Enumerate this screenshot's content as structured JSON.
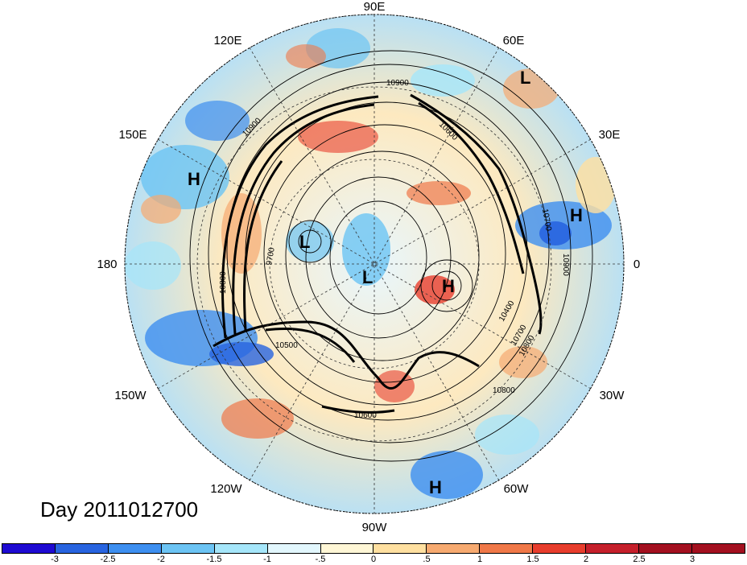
{
  "title": "Day 2011012700",
  "longitude_labels": {
    "top": "90E",
    "upper_left": "120E",
    "upper_right": "60E",
    "left_upper": "150E",
    "right_upper": "30E",
    "left": "180",
    "right": "0",
    "left_lower": "150W",
    "right_lower": "30W",
    "lower_left": "120W",
    "lower_right": "60W",
    "bottom": "90W"
  },
  "pressure_centers": [
    {
      "label": "L",
      "name": "low-center-north-atlantic-europe"
    },
    {
      "label": "H",
      "name": "high-center-west-pacific"
    },
    {
      "label": "H",
      "name": "high-center-europe"
    },
    {
      "label": "L",
      "name": "low-center-siberia"
    },
    {
      "label": "L",
      "name": "low-center-pole"
    },
    {
      "label": "H",
      "name": "high-center-greenland"
    },
    {
      "label": "H",
      "name": "high-center-atlantic-south"
    }
  ],
  "contour_labels": [
    "10900",
    "10800",
    "10700",
    "10600",
    "10500",
    "10400",
    "10900",
    "10700",
    "10800",
    "10600",
    "9700",
    "10800",
    "10900"
  ],
  "colorbar": {
    "colors": [
      "#1e0ad2",
      "#2864e0",
      "#3d8ff0",
      "#6cc4f4",
      "#a5e6fa",
      "#e2f7fd",
      "#fff7d6",
      "#ffe0a0",
      "#f7aa70",
      "#f07848",
      "#e83d2d",
      "#c51f2b",
      "#a3101f"
    ],
    "tick_labels": [
      "-3",
      "-2.5",
      "-2",
      "-1.5",
      "-1",
      "-.5",
      "0",
      ".5",
      "1",
      "1.5",
      "2",
      "2.5",
      "3"
    ]
  },
  "colors": {
    "ocean_blue": "#6cc4f4",
    "warm_red": "#e83d2d",
    "neutral": "#fff7d6"
  }
}
